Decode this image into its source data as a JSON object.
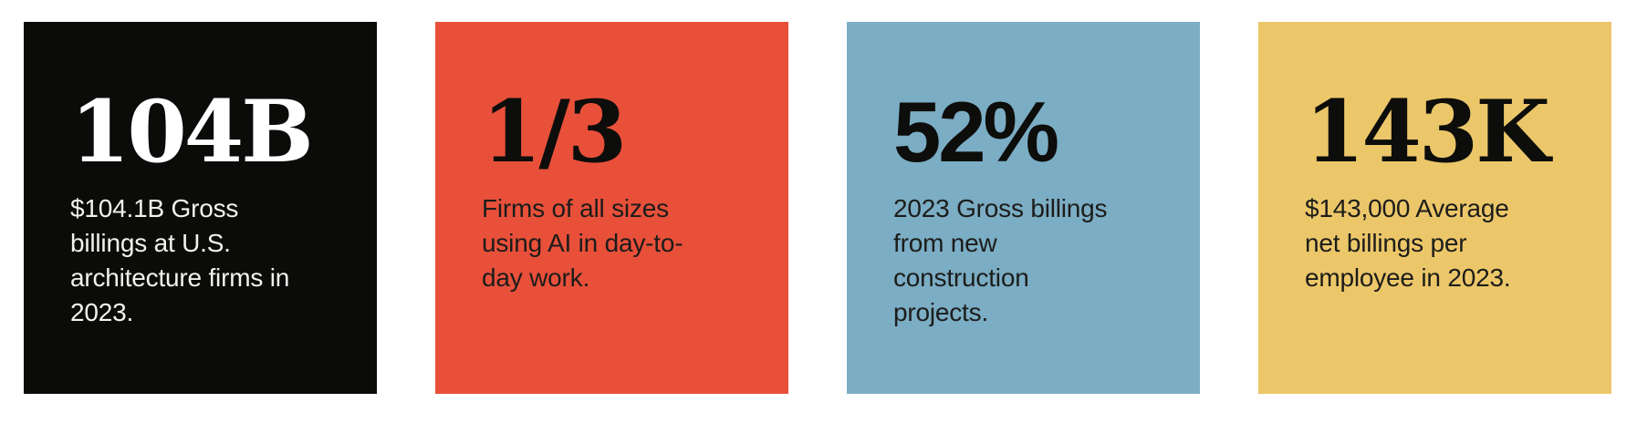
{
  "page": {
    "background": "#ffffff",
    "description": "Infographic row of four statistic cards about U.S. architecture firms"
  },
  "chart_data": {
    "type": "table",
    "title": "",
    "stats": [
      {
        "display_value": "104B",
        "numeric_value": 104.1,
        "unit": "billion USD",
        "caption": "$104.1B Gross billings at U.S. architecture firms in 2023."
      },
      {
        "display_value": "1/3",
        "numeric_value": 0.333,
        "unit": "fraction of firms",
        "caption": "Firms of all sizes using AI in day-to-day work."
      },
      {
        "display_value": "52%",
        "numeric_value": 52,
        "unit": "percent",
        "caption": "2023 Gross billings from new construction projects."
      },
      {
        "display_value": "143K",
        "numeric_value": 143000,
        "unit": "USD",
        "caption": "$143,000 Average net billings per employee in 2023."
      }
    ]
  },
  "cards": [
    {
      "stat": "104B",
      "description": "$104.1B Gross\nbillings at U.S.\narchitecture firms in\n2023.",
      "background": "#0B0B09",
      "stat_color": "#FFFFFF",
      "text_color": "#F1F1EF"
    },
    {
      "stat": "1/3",
      "description": "Firms of all sizes\nusing AI in day-to-\nday work.",
      "background": "#E8503A",
      "stat_color": "#0D0D0B",
      "text_color": "#1C1C1A"
    },
    {
      "stat": "52%",
      "description": "2023 Gross billings\nfrom new\nconstruction\nprojects.",
      "background": "#7BADC4",
      "stat_color": "#0D0D0B",
      "text_color": "#1C1C1A"
    },
    {
      "stat": "143K",
      "description": "$143,000 Average\nnet billings per\nemployee in 2023.",
      "background": "#ECC76A",
      "stat_color": "#0D0D0B",
      "text_color": "#1C1C1A"
    }
  ]
}
